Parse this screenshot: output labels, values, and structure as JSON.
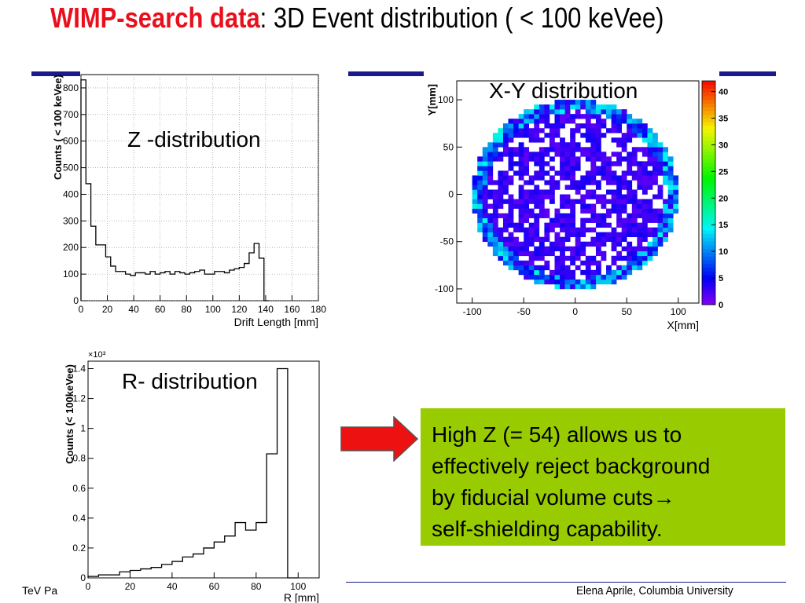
{
  "slide": {
    "title_bold": "WIMP-search data",
    "title_rest": ": 3D Event distribution ( < 100 keVee)",
    "callout_lines": [
      "High Z (= 54) allows us to",
      "effectively reject background",
      "by fiducial volume cuts→",
      "self-shielding capability."
    ],
    "footer_left": "TeV Pa",
    "footer_right": "Elena Aprile, Columbia University",
    "colors": {
      "title_red": "#e8101c",
      "rule_blue": "#1a1a8c",
      "callout_green": "#99cc00",
      "arrow_red": "#ee1111"
    }
  },
  "chart_data": [
    {
      "type": "histogram",
      "plot_title": "Z -distribution",
      "xlabel": "Drift Length [mm]",
      "ylabel": "Counts ( < 100 keVee)",
      "xlim": [
        0,
        180
      ],
      "ylim": [
        0,
        850
      ],
      "xticks": [
        0,
        20,
        40,
        60,
        80,
        100,
        120,
        140,
        160,
        180
      ],
      "yticks": [
        0,
        100,
        200,
        300,
        400,
        500,
        600,
        700,
        800
      ],
      "grid": true,
      "bin_width": 3.75,
      "values": [
        830,
        440,
        280,
        210,
        210,
        165,
        130,
        110,
        110,
        100,
        95,
        105,
        105,
        100,
        110,
        100,
        105,
        110,
        100,
        110,
        105,
        100,
        105,
        110,
        115,
        100,
        100,
        110,
        110,
        105,
        115,
        120,
        125,
        140,
        180,
        215,
        160,
        0
      ]
    },
    {
      "type": "heatmap",
      "plot_title": "X-Y distribution",
      "xlabel": "X[mm]",
      "ylabel": "Y[mm]",
      "xlim": [
        -115,
        120
      ],
      "ylim": [
        -115,
        120
      ],
      "xticks": [
        -100,
        -50,
        0,
        50,
        100
      ],
      "yticks": [
        -100,
        -50,
        0,
        50,
        100
      ],
      "colorbar_ticks": [
        0,
        5,
        10,
        15,
        20,
        25,
        30,
        35,
        40
      ],
      "zlim": [
        0,
        42
      ],
      "region": "circle of radius ~100 mm centred at origin",
      "typical_count": "0-5 per bin, up to ~15 at edge"
    },
    {
      "type": "histogram",
      "plot_title": "R- distribution",
      "xlabel": "R [mm]",
      "ylabel": "Counts (< 100keVee)",
      "y_multiplier": "×10³",
      "xlim": [
        0,
        110
      ],
      "ylim": [
        0,
        1.45
      ],
      "xticks": [
        0,
        20,
        40,
        60,
        80,
        100
      ],
      "yticks": [
        0,
        0.2,
        0.4,
        0.6,
        0.8,
        1,
        1.2,
        1.4
      ],
      "bin_width": 5,
      "values": [
        0.01,
        0.02,
        0.02,
        0.04,
        0.05,
        0.06,
        0.07,
        0.09,
        0.11,
        0.14,
        0.16,
        0.2,
        0.24,
        0.28,
        0.37,
        0.32,
        0.37,
        0.83,
        1.4,
        0
      ]
    }
  ]
}
